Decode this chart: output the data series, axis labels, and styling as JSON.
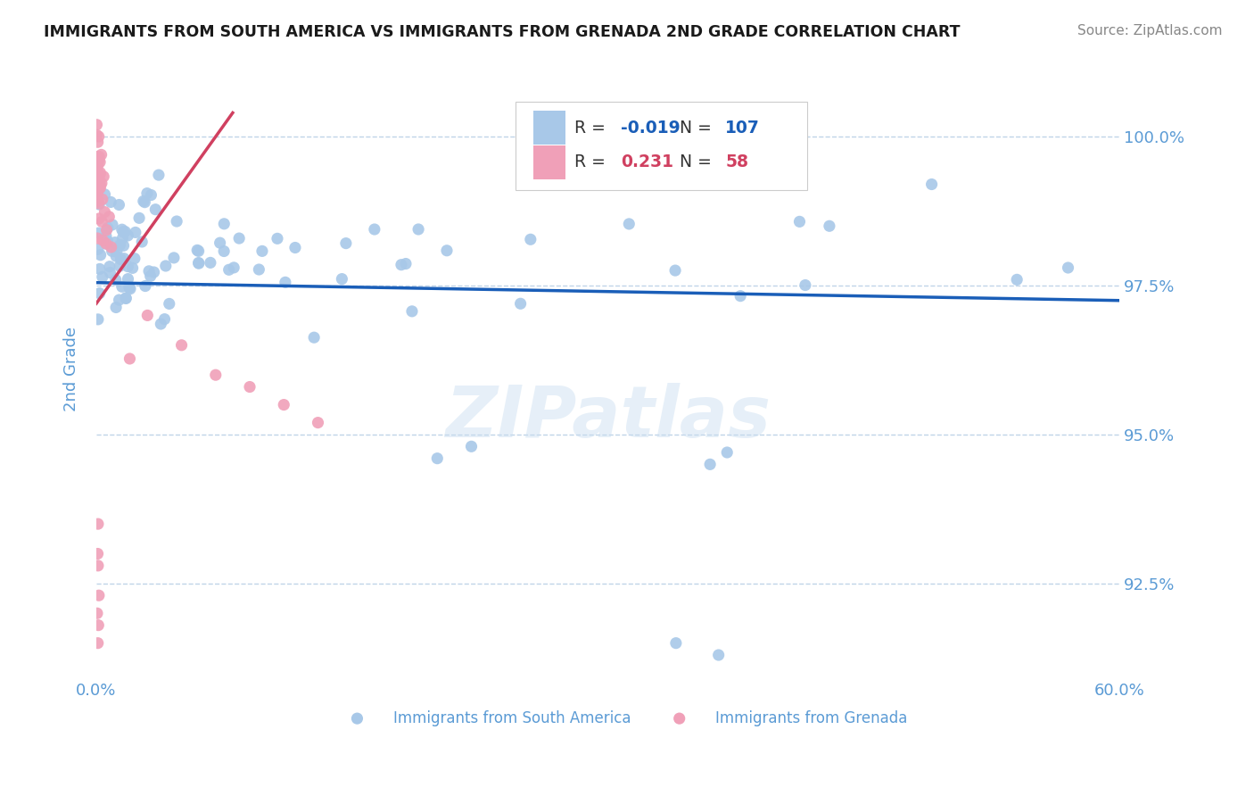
{
  "title": "IMMIGRANTS FROM SOUTH AMERICA VS IMMIGRANTS FROM GRENADA 2ND GRADE CORRELATION CHART",
  "source": "Source: ZipAtlas.com",
  "ylabel": "2nd Grade",
  "y_ticks": [
    92.5,
    95.0,
    97.5,
    100.0
  ],
  "y_tick_labels": [
    "92.5%",
    "95.0%",
    "97.5%",
    "100.0%"
  ],
  "x_min": 0.0,
  "x_max": 60.0,
  "y_min": 91.0,
  "y_max": 101.2,
  "blue_color": "#a8c8e8",
  "pink_color": "#f0a0b8",
  "trend_blue_color": "#1a5eb8",
  "trend_pink_color": "#d04060",
  "tick_color": "#5b9bd5",
  "axis_label_color": "#5b9bd5",
  "grid_color": "#c0d4e8",
  "legend_blue_R": "-0.019",
  "legend_blue_N": "107",
  "legend_pink_R": "0.231",
  "legend_pink_N": "58",
  "watermark": "ZIPatlas"
}
